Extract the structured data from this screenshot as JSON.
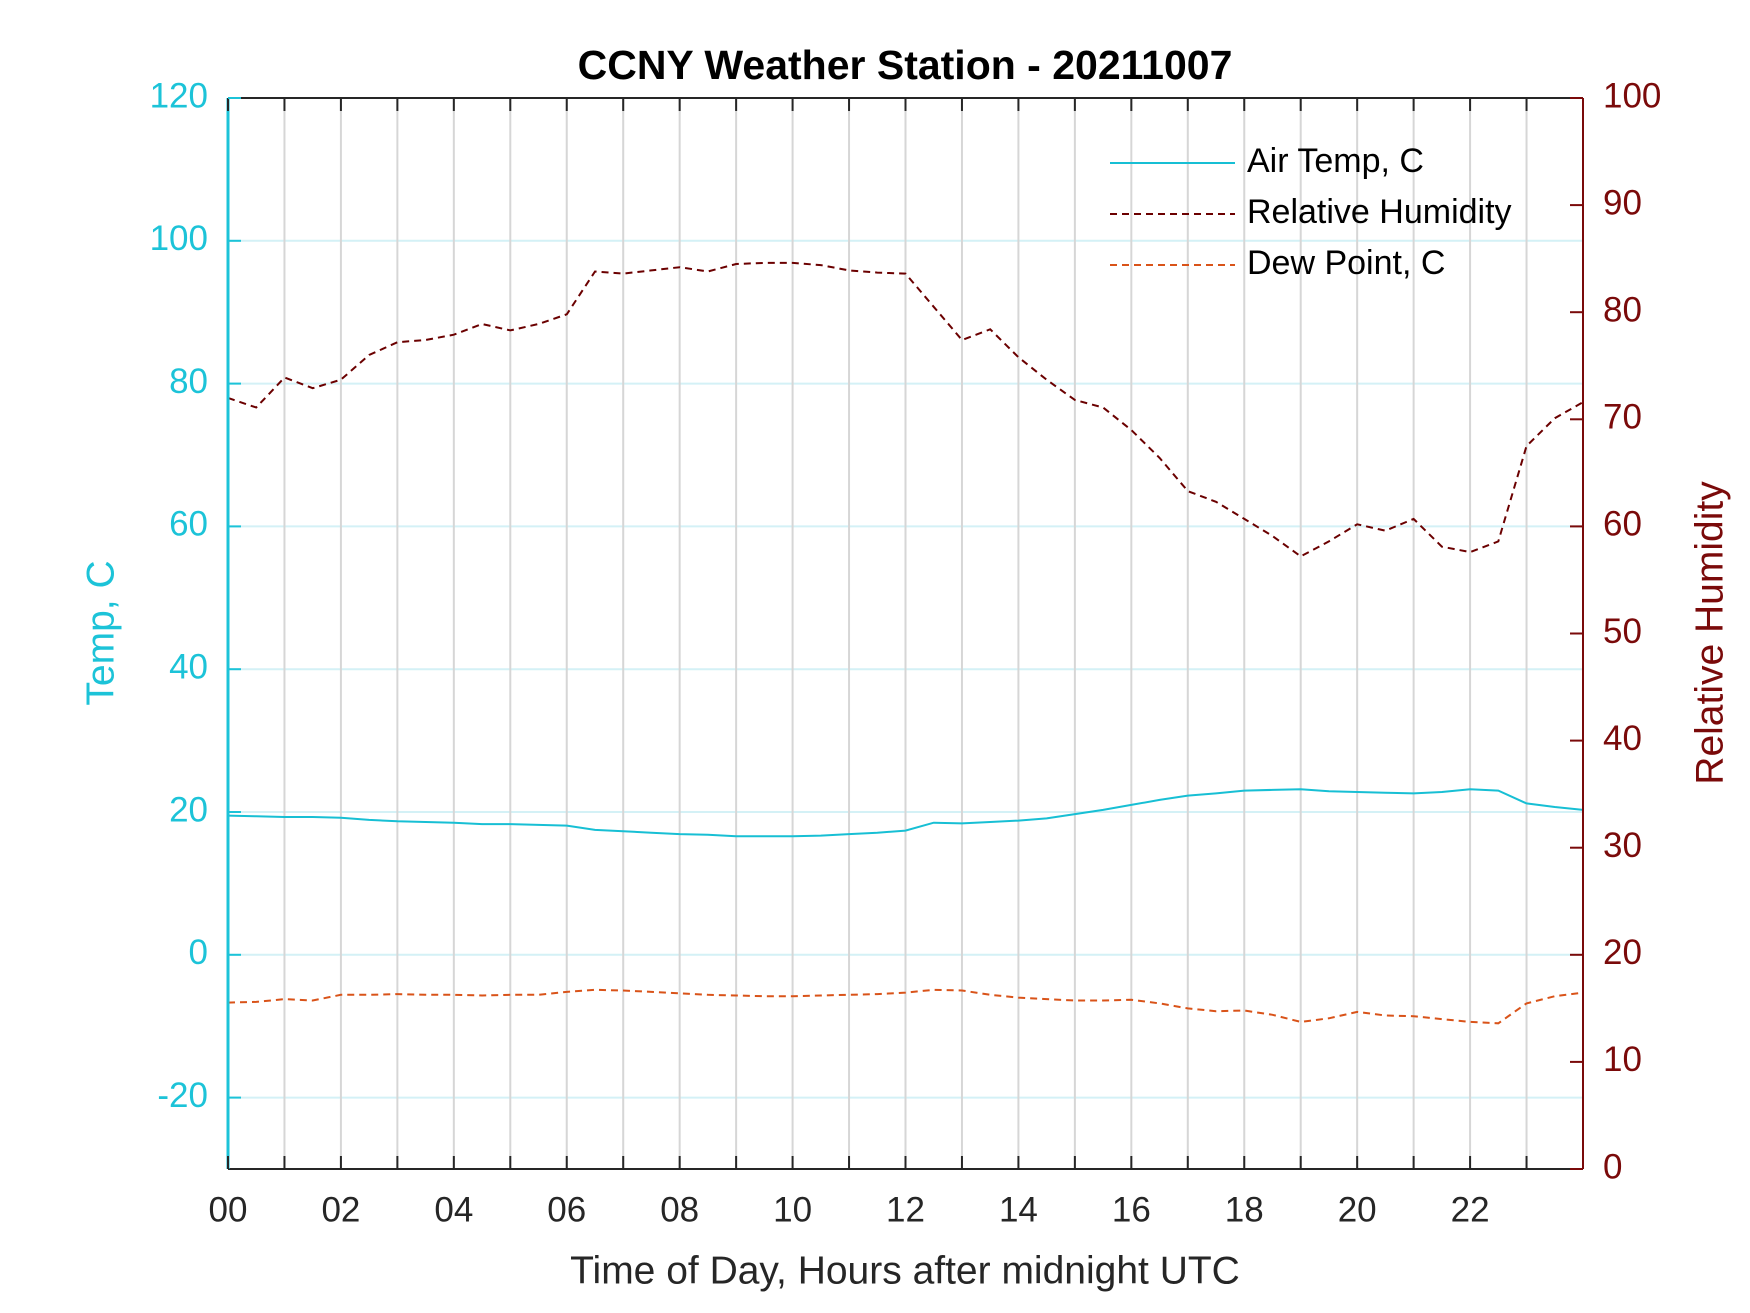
{
  "chart_data": {
    "type": "line",
    "title": "CCNY Weather Station - 20211007",
    "xlabel": "Time of Day, Hours after midnight UTC",
    "ylabel": "Temp, C",
    "y2label": "Relative Humidity",
    "xlim": [
      0,
      24
    ],
    "xticks": [
      {
        "value": 0,
        "label": "00"
      },
      {
        "value": 2,
        "label": "02"
      },
      {
        "value": 4,
        "label": "04"
      },
      {
        "value": 6,
        "label": "06"
      },
      {
        "value": 8,
        "label": "08"
      },
      10,
      12,
      14,
      16,
      18,
      20,
      22
    ],
    "xminor_ticks": [
      1,
      3,
      5,
      7,
      9,
      11,
      13,
      15,
      17,
      19,
      21,
      23
    ],
    "ylim": [
      -30,
      120
    ],
    "yticks": [
      -20,
      0,
      20,
      40,
      60,
      80,
      100,
      120
    ],
    "y2lim": [
      0,
      100
    ],
    "y2ticks": [
      0,
      10,
      20,
      30,
      40,
      50,
      60,
      70,
      80,
      90,
      100
    ],
    "ycolor": "#1cc3d8",
    "y2color": "#7a0a0a",
    "grid": true,
    "legend": "upper right",
    "x": [
      0,
      0.5,
      1,
      1.5,
      2,
      2.5,
      3,
      3.5,
      4,
      4.5,
      5,
      5.5,
      6,
      6.5,
      7,
      7.5,
      8,
      8.5,
      9,
      9.5,
      10,
      10.5,
      11,
      11.5,
      12,
      12.5,
      13,
      13.5,
      14,
      14.5,
      15,
      15.5,
      16,
      16.5,
      17,
      17.5,
      18,
      18.5,
      19,
      19.5,
      20,
      20.5,
      21,
      21.5,
      22,
      22.5,
      23,
      23.5,
      24
    ],
    "series": [
      {
        "name": "Air Temp, C",
        "color": "#17bfd4",
        "dash": "solid",
        "values": [
          19.5,
          19.4,
          19.3,
          19.3,
          19.2,
          18.9,
          18.7,
          18.6,
          18.5,
          18.3,
          18.3,
          18.2,
          18.1,
          17.5,
          17.3,
          17.1,
          16.9,
          16.8,
          16.6,
          16.6,
          16.6,
          16.7,
          16.9,
          17.1,
          17.4,
          18.5,
          18.4,
          18.6,
          18.8,
          19.1,
          19.7,
          20.3,
          21.0,
          21.7,
          22.3,
          22.6,
          23.0,
          23.1,
          23.2,
          22.9,
          22.8,
          22.7,
          22.6,
          22.8,
          23.2,
          23.0,
          21.2,
          20.7,
          20.3
        ]
      },
      {
        "name": "Relative Humidity",
        "color": "#6b0000",
        "dash": "dashed",
        "axis": "y2",
        "values": [
          72.0,
          71.1,
          73.9,
          72.9,
          73.7,
          76.0,
          77.2,
          77.4,
          77.9,
          78.9,
          78.3,
          78.9,
          79.8,
          83.8,
          83.6,
          83.9,
          84.2,
          83.8,
          84.5,
          84.6,
          84.6,
          84.4,
          83.9,
          83.7,
          83.6,
          80.5,
          77.4,
          78.4,
          75.8,
          73.7,
          71.8,
          71.1,
          69.0,
          66.4,
          63.3,
          62.3,
          60.7,
          59.1,
          57.2,
          58.6,
          60.2,
          59.6,
          60.7,
          58.1,
          57.6,
          58.6,
          67.5,
          70.1,
          71.6
        ]
      },
      {
        "name": "Dew Point, C",
        "color": "#d95319",
        "dash": "dashed",
        "values": [
          -6.7,
          -6.6,
          -6.2,
          -6.4,
          -5.6,
          -5.6,
          -5.5,
          -5.6,
          -5.6,
          -5.7,
          -5.6,
          -5.6,
          -5.2,
          -4.9,
          -5.0,
          -5.2,
          -5.4,
          -5.6,
          -5.7,
          -5.8,
          -5.8,
          -5.7,
          -5.6,
          -5.5,
          -5.3,
          -4.9,
          -5.0,
          -5.6,
          -6.0,
          -6.2,
          -6.4,
          -6.4,
          -6.3,
          -6.8,
          -7.5,
          -7.9,
          -7.8,
          -8.4,
          -9.4,
          -8.9,
          -8.0,
          -8.5,
          -8.6,
          -9.0,
          -9.4,
          -9.6,
          -6.8,
          -5.8,
          -5.3
        ]
      }
    ]
  }
}
